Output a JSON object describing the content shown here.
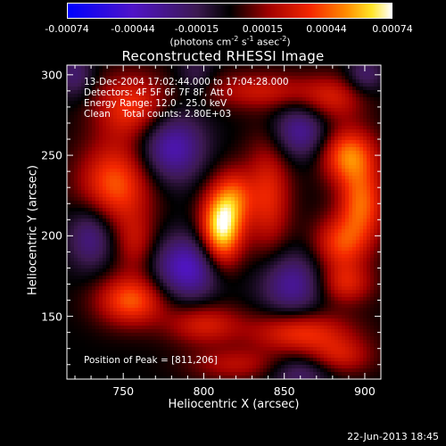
{
  "chart_data": {
    "type": "heatmap",
    "title": "Reconstructed RHESSI Image",
    "xlabel": "Heliocentric X (arcsec)",
    "ylabel": "Heliocentric Y (arcsec)",
    "xlim": [
      715,
      910
    ],
    "ylim": [
      111,
      306
    ],
    "x_ticks": [
      750,
      800,
      850,
      900
    ],
    "y_ticks": [
      150,
      200,
      250,
      300
    ],
    "colorbar": {
      "min": -0.00074,
      "max": 0.00074,
      "tick_values": [
        -0.00074,
        -0.00044,
        -0.00015,
        0.00015,
        0.00044,
        0.00074
      ],
      "tick_labels": [
        "-0.00074",
        "-0.00044",
        "-0.00015",
        "0.00015",
        "0.00044",
        "0.00074"
      ],
      "units_text": "(photons cm",
      "units_sup1": "-2",
      "units_mid": " s",
      "units_sup2": "-1",
      "units_mid2": " asec",
      "units_sup3": "-2",
      "units_end": ")"
    },
    "annotations": {
      "time": "13-Dec-2004 17:02:44.000 to 17:04:28.000",
      "detectors": "Detectors: 4F 5F 6F 7F 8F, Att 0",
      "energy": "Energy Range: 12.0 - 25.0 keV",
      "clean": "Clean    Total counts: 2.80E+03",
      "peak": "Position of Peak = [811,206]"
    },
    "sources": [
      {
        "x": 811,
        "y": 205,
        "sx": 9,
        "sy": 17,
        "amp": 1.0
      },
      {
        "x": 820,
        "y": 225,
        "sx": 8,
        "sy": 12,
        "amp": 0.35
      },
      {
        "x": 745,
        "y": 232,
        "sx": 16,
        "sy": 18,
        "amp": 0.6
      },
      {
        "x": 755,
        "y": 280,
        "sx": 16,
        "sy": 14,
        "amp": 0.5
      },
      {
        "x": 758,
        "y": 195,
        "sx": 9,
        "sy": 13,
        "amp": 0.3
      },
      {
        "x": 755,
        "y": 160,
        "sx": 15,
        "sy": 11,
        "amp": 0.6
      },
      {
        "x": 800,
        "y": 145,
        "sx": 16,
        "sy": 9,
        "amp": 0.4
      },
      {
        "x": 840,
        "y": 225,
        "sx": 10,
        "sy": 25,
        "amp": 0.45
      },
      {
        "x": 835,
        "y": 290,
        "sx": 25,
        "sy": 8,
        "amp": 0.35
      },
      {
        "x": 880,
        "y": 285,
        "sx": 14,
        "sy": 10,
        "amp": 0.35
      },
      {
        "x": 890,
        "y": 250,
        "sx": 12,
        "sy": 12,
        "amp": 0.65
      },
      {
        "x": 898,
        "y": 220,
        "sx": 10,
        "sy": 16,
        "amp": 0.6
      },
      {
        "x": 885,
        "y": 195,
        "sx": 12,
        "sy": 12,
        "amp": 0.5
      },
      {
        "x": 888,
        "y": 170,
        "sx": 12,
        "sy": 9,
        "amp": 0.4
      },
      {
        "x": 860,
        "y": 140,
        "sx": 22,
        "sy": 9,
        "amp": 0.5
      },
      {
        "x": 885,
        "y": 125,
        "sx": 14,
        "sy": 8,
        "amp": 0.35
      },
      {
        "x": 820,
        "y": 120,
        "sx": 20,
        "sy": 7,
        "amp": 0.3
      },
      {
        "x": 780,
        "y": 255,
        "sx": 14,
        "sy": 15,
        "amp": -0.55
      },
      {
        "x": 790,
        "y": 180,
        "sx": 15,
        "sy": 14,
        "amp": -0.6
      },
      {
        "x": 860,
        "y": 265,
        "sx": 12,
        "sy": 12,
        "amp": -0.45
      },
      {
        "x": 855,
        "y": 170,
        "sx": 14,
        "sy": 14,
        "amp": -0.45
      },
      {
        "x": 730,
        "y": 200,
        "sx": 10,
        "sy": 14,
        "amp": -0.4
      },
      {
        "x": 860,
        "y": 115,
        "sx": 14,
        "sy": 8,
        "amp": -0.3
      },
      {
        "x": 720,
        "y": 300,
        "sx": 8,
        "sy": 10,
        "amp": -0.3
      },
      {
        "x": 900,
        "y": 300,
        "sx": 8,
        "sy": 8,
        "amp": -0.3
      },
      {
        "x": 795,
        "y": 300,
        "sx": 8,
        "sy": 10,
        "amp": -0.2
      }
    ]
  },
  "footer": "22-Jun-2013 18:45"
}
